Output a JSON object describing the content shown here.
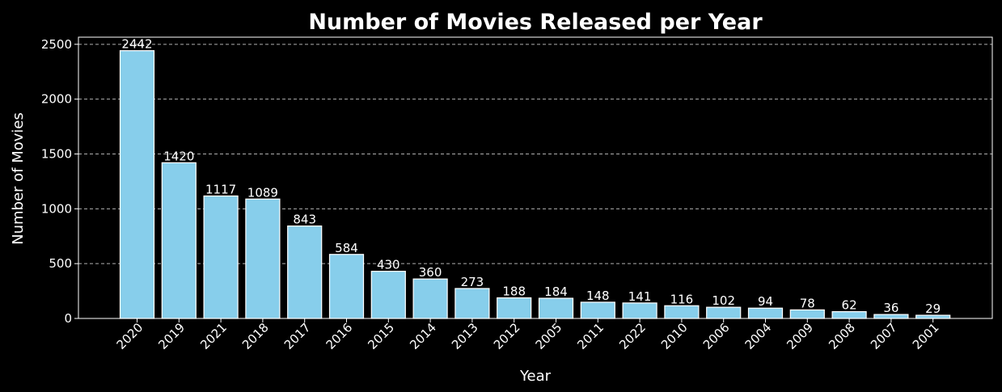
{
  "chart_data": {
    "type": "bar",
    "title": "Number of Movies Released per Year",
    "xlabel": "Year",
    "ylabel": "Number of Movies",
    "categories": [
      "2020",
      "2019",
      "2021",
      "2018",
      "2017",
      "2016",
      "2015",
      "2014",
      "2013",
      "2012",
      "2005",
      "2011",
      "2022",
      "2010",
      "2006",
      "2004",
      "2009",
      "2008",
      "2007",
      "2001"
    ],
    "values": [
      2442,
      1420,
      1117,
      1089,
      843,
      584,
      430,
      360,
      273,
      188,
      184,
      148,
      141,
      116,
      102,
      94,
      78,
      62,
      36,
      29
    ],
    "ylim": [
      0,
      2565
    ],
    "yticks": [
      0,
      500,
      1000,
      1500,
      2000,
      2500
    ],
    "grid": "y-dashed",
    "bar_color": "#87ceeb",
    "bar_edge_color": "#ffffff",
    "background_color": "#000000",
    "text_color": "#ffffff"
  }
}
